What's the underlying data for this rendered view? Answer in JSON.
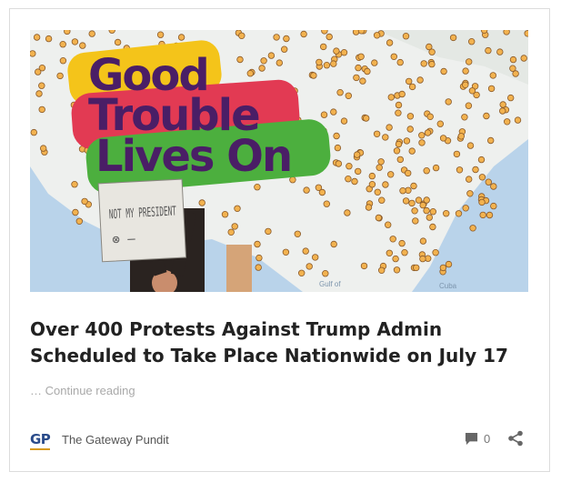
{
  "hero": {
    "banner_lines": [
      "Good",
      "Trouble",
      "Lives On"
    ],
    "sign_text": "NOT MY PRESIDENT",
    "sign_mid": "⊗ —",
    "map_label_1": "Gulf of",
    "map_label_2": "Cuba",
    "banner_colors": [
      "#f4c41a",
      "#e23a53",
      "#4caf3e"
    ],
    "banner_text_color": "#4a1e66"
  },
  "article": {
    "headline": "Over 400 Protests Against Trump Admin Scheduled to Take Place Nationwide on July 17",
    "continue_prefix": "…",
    "continue_link": "Continue reading"
  },
  "footer": {
    "logo_text": "GP",
    "source_name": "The Gateway Pundit",
    "comment_count": "0",
    "comment_icon": "comment-icon",
    "share_icon": "share-icon"
  }
}
